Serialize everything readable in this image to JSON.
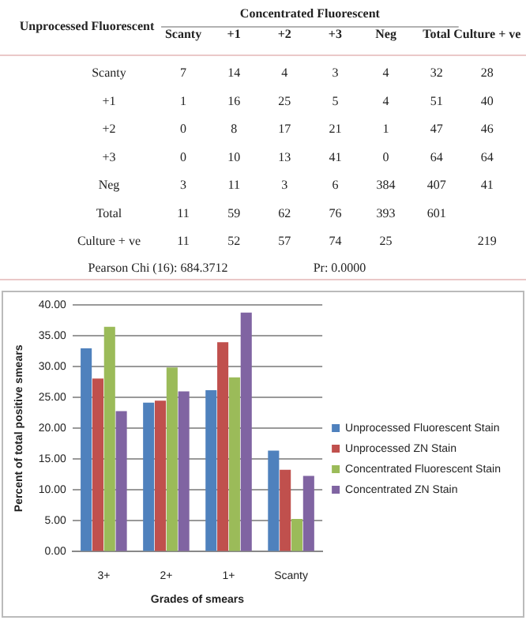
{
  "chart_data": [
    {
      "type": "heatmap",
      "title": "Concentrated Fluorescent",
      "ylabel": "Unprocessed Fluorescent",
      "categories": [
        "Scanty",
        "+1",
        "+2",
        "+3",
        "Neg",
        "Total",
        "Culture + ve"
      ],
      "y_categories": [
        "Scanty",
        "+1",
        "+2",
        "+3",
        "Neg",
        "Total",
        "Culture + ve"
      ],
      "cells": [
        [
          7,
          14,
          4,
          3,
          4,
          32,
          28
        ],
        [
          1,
          16,
          25,
          5,
          4,
          51,
          40
        ],
        [
          0,
          8,
          17,
          21,
          1,
          47,
          46
        ],
        [
          0,
          10,
          13,
          41,
          0,
          64,
          64
        ],
        [
          3,
          11,
          3,
          6,
          384,
          407,
          41
        ],
        [
          11,
          59,
          62,
          76,
          393,
          601,
          null
        ],
        [
          11,
          52,
          57,
          74,
          25,
          null,
          219
        ]
      ],
      "annotations": [
        "Pearson Chi (16): 684.3712",
        "Pr: 0.0000"
      ],
      "data_labels": true
    },
    {
      "type": "bar",
      "xlabel": "Grades of smears",
      "ylabel": "Percent of total positive smears",
      "categories": [
        "3+",
        "2+",
        "1+",
        "Scanty"
      ],
      "series": [
        {
          "name": "Unprocessed Fluorescent Stain",
          "color": "#4f81bd",
          "values": [
            33.0,
            24.2,
            26.2,
            16.4
          ]
        },
        {
          "name": "Unprocessed ZN Stain",
          "color": "#c0504d",
          "values": [
            28.1,
            24.5,
            34.0,
            13.3
          ]
        },
        {
          "name": "Concentrated Fluorescent Stain",
          "color": "#9bbb59",
          "values": [
            36.5,
            29.9,
            28.3,
            5.3
          ]
        },
        {
          "name": "Concentrated ZN Stain",
          "color": "#8064a2",
          "values": [
            22.8,
            26.0,
            38.8,
            12.3
          ]
        }
      ],
      "ylim": [
        0,
        40
      ],
      "yticks": [
        {
          "value": 0,
          "label": "0.00"
        },
        {
          "value": 5,
          "label": "5.00"
        },
        {
          "value": 10,
          "label": "10.00"
        },
        {
          "value": 15,
          "label": "15.00"
        },
        {
          "value": 20,
          "label": "20.00"
        },
        {
          "value": 25,
          "label": "25.00"
        },
        {
          "value": 30,
          "label": "30.00"
        },
        {
          "value": 35,
          "label": "35.00"
        },
        {
          "value": 40,
          "label": "40.00"
        }
      ],
      "grid": "y",
      "legend": "right"
    }
  ]
}
